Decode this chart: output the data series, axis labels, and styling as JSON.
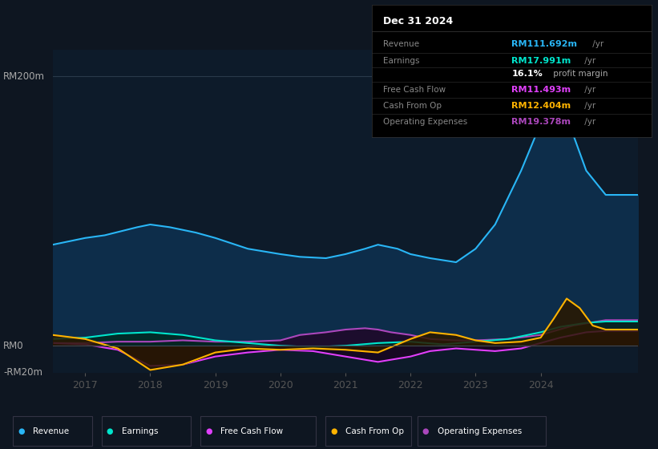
{
  "background_color": "#0e1621",
  "plot_bg_color": "#0d1b2a",
  "ylim": [
    -20,
    220
  ],
  "xlim": [
    2016.5,
    2025.5
  ],
  "yticks": [
    200,
    0,
    -20
  ],
  "ytick_labels": [
    "RM200m",
    "RM0",
    "-RM20m"
  ],
  "xticks": [
    2017,
    2018,
    2019,
    2020,
    2021,
    2022,
    2023,
    2024
  ],
  "info_box": {
    "title": "Dec 31 2024",
    "rows": [
      {
        "label": "Revenue",
        "value": "RM111.692m",
        "suffix": " /yr",
        "value_color": "#29b6f6"
      },
      {
        "label": "Earnings",
        "value": "RM17.991m",
        "suffix": " /yr",
        "value_color": "#00e5cc"
      },
      {
        "label": "",
        "value": "16.1%",
        "suffix": " profit margin",
        "value_color": "#ffffff",
        "suffix_color": "#aaaaaa"
      },
      {
        "label": "Free Cash Flow",
        "value": "RM11.493m",
        "suffix": " /yr",
        "value_color": "#e040fb"
      },
      {
        "label": "Cash From Op",
        "value": "RM12.404m",
        "suffix": " /yr",
        "value_color": "#ffb300"
      },
      {
        "label": "Operating Expenses",
        "value": "RM19.378m",
        "suffix": " /yr",
        "value_color": "#ab47bc"
      }
    ]
  },
  "series": {
    "revenue": {
      "color": "#29b6f6",
      "fill_color": "#0d2d4a",
      "label": "Revenue",
      "x": [
        2016.5,
        2017.0,
        2017.3,
        2017.8,
        2018.0,
        2018.3,
        2018.7,
        2019.0,
        2019.5,
        2020.0,
        2020.3,
        2020.7,
        2021.0,
        2021.3,
        2021.5,
        2021.8,
        2022.0,
        2022.3,
        2022.7,
        2023.0,
        2023.3,
        2023.7,
        2024.0,
        2024.2,
        2024.4,
        2024.7,
        2025.0,
        2025.5
      ],
      "y": [
        75,
        80,
        82,
        88,
        90,
        88,
        84,
        80,
        72,
        68,
        66,
        65,
        68,
        72,
        75,
        72,
        68,
        65,
        62,
        72,
        90,
        130,
        165,
        185,
        170,
        130,
        112,
        112
      ]
    },
    "earnings": {
      "color": "#00e5cc",
      "fill_color": "#002a20",
      "label": "Earnings",
      "x": [
        2016.5,
        2017.0,
        2017.5,
        2018.0,
        2018.5,
        2019.0,
        2019.5,
        2020.0,
        2020.5,
        2021.0,
        2021.5,
        2022.0,
        2022.5,
        2023.0,
        2023.5,
        2024.0,
        2024.3,
        2024.7,
        2025.0,
        2025.5
      ],
      "y": [
        5,
        6,
        9,
        10,
        8,
        4,
        2,
        0,
        -1,
        0,
        2,
        3,
        1,
        3,
        5,
        10,
        14,
        17,
        18,
        18
      ]
    },
    "free_cash_flow": {
      "color": "#e040fb",
      "fill_color": "#1a0020",
      "label": "Free Cash Flow",
      "x": [
        2016.5,
        2017.0,
        2017.5,
        2018.0,
        2018.5,
        2019.0,
        2019.5,
        2020.0,
        2020.5,
        2021.0,
        2021.5,
        2022.0,
        2022.3,
        2022.7,
        2023.0,
        2023.3,
        2023.7,
        2024.0,
        2024.3,
        2024.7,
        2025.0,
        2025.5
      ],
      "y": [
        2,
        1,
        -3,
        -15,
        -14,
        -8,
        -5,
        -3,
        -4,
        -8,
        -12,
        -8,
        -4,
        -2,
        -3,
        -4,
        -2,
        2,
        6,
        10,
        11,
        11
      ]
    },
    "cash_from_op": {
      "color": "#ffb300",
      "fill_color": "#2a1800",
      "label": "Cash From Op",
      "x": [
        2016.5,
        2017.0,
        2017.5,
        2018.0,
        2018.5,
        2019.0,
        2019.5,
        2020.0,
        2020.5,
        2021.0,
        2021.5,
        2022.0,
        2022.3,
        2022.7,
        2023.0,
        2023.3,
        2023.7,
        2024.0,
        2024.2,
        2024.4,
        2024.6,
        2024.8,
        2025.0,
        2025.5
      ],
      "y": [
        8,
        5,
        -2,
        -18,
        -14,
        -5,
        -2,
        -3,
        -2,
        -3,
        -5,
        5,
        10,
        8,
        4,
        2,
        3,
        6,
        20,
        35,
        28,
        15,
        12,
        12
      ]
    },
    "operating_expenses": {
      "color": "#ab47bc",
      "fill_color": "#1e0a2a",
      "label": "Operating Expenses",
      "x": [
        2016.5,
        2017.0,
        2017.5,
        2018.0,
        2018.5,
        2019.0,
        2019.5,
        2020.0,
        2020.3,
        2020.7,
        2021.0,
        2021.3,
        2021.5,
        2021.7,
        2022.0,
        2022.3,
        2022.7,
        2023.0,
        2023.5,
        2024.0,
        2024.5,
        2025.0,
        2025.5
      ],
      "y": [
        2,
        2,
        3,
        3,
        4,
        3,
        3,
        4,
        8,
        10,
        12,
        13,
        12,
        10,
        8,
        5,
        4,
        4,
        5,
        8,
        15,
        19,
        19
      ]
    }
  },
  "legend": [
    {
      "label": "Revenue",
      "color": "#29b6f6"
    },
    {
      "label": "Earnings",
      "color": "#00e5cc"
    },
    {
      "label": "Free Cash Flow",
      "color": "#e040fb"
    },
    {
      "label": "Cash From Op",
      "color": "#ffb300"
    },
    {
      "label": "Operating Expenses",
      "color": "#ab47bc"
    }
  ]
}
